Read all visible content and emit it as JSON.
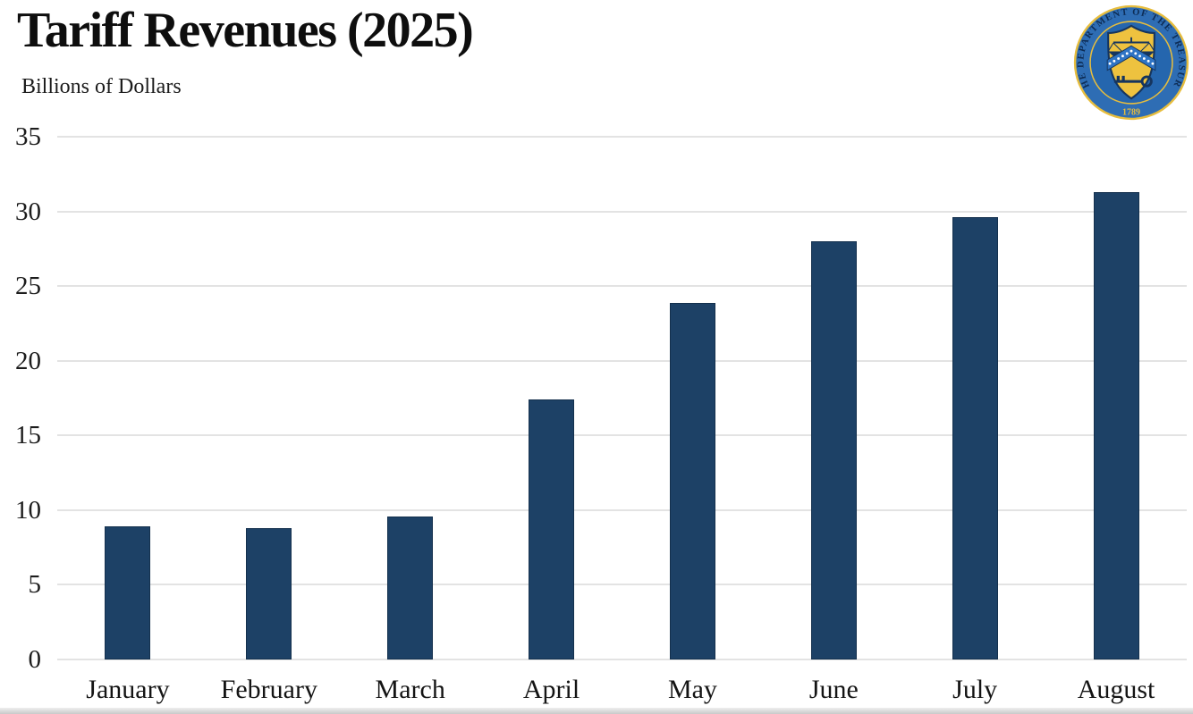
{
  "header": {
    "title": "Tariff Revenues (2025)",
    "subtitle": "Billions of Dollars"
  },
  "seal": {
    "ring_text": "THE DEPARTMENT OF THE TREASURY",
    "year": "1789",
    "colors": {
      "ring_blue": "#2e6db4",
      "center_blue": "#2566ae",
      "gold": "#e7bd3d",
      "navy": "#16355e",
      "chevron_blue": "#2f74c4"
    }
  },
  "chart_data": {
    "type": "bar",
    "title": "Tariff Revenues (2025)",
    "xlabel": "",
    "ylabel": "Billions of Dollars",
    "categories": [
      "January",
      "February",
      "March",
      "April",
      "May",
      "June",
      "July",
      "August"
    ],
    "values": [
      8.9,
      8.8,
      9.6,
      17.4,
      23.9,
      28.0,
      29.6,
      31.3
    ],
    "ylim": [
      0,
      35
    ],
    "yticks": [
      0,
      5,
      10,
      15,
      20,
      25,
      30,
      35
    ],
    "grid": true,
    "legend": false,
    "bar_color": "#1d4166",
    "gridline_color": "#e3e3e3"
  }
}
